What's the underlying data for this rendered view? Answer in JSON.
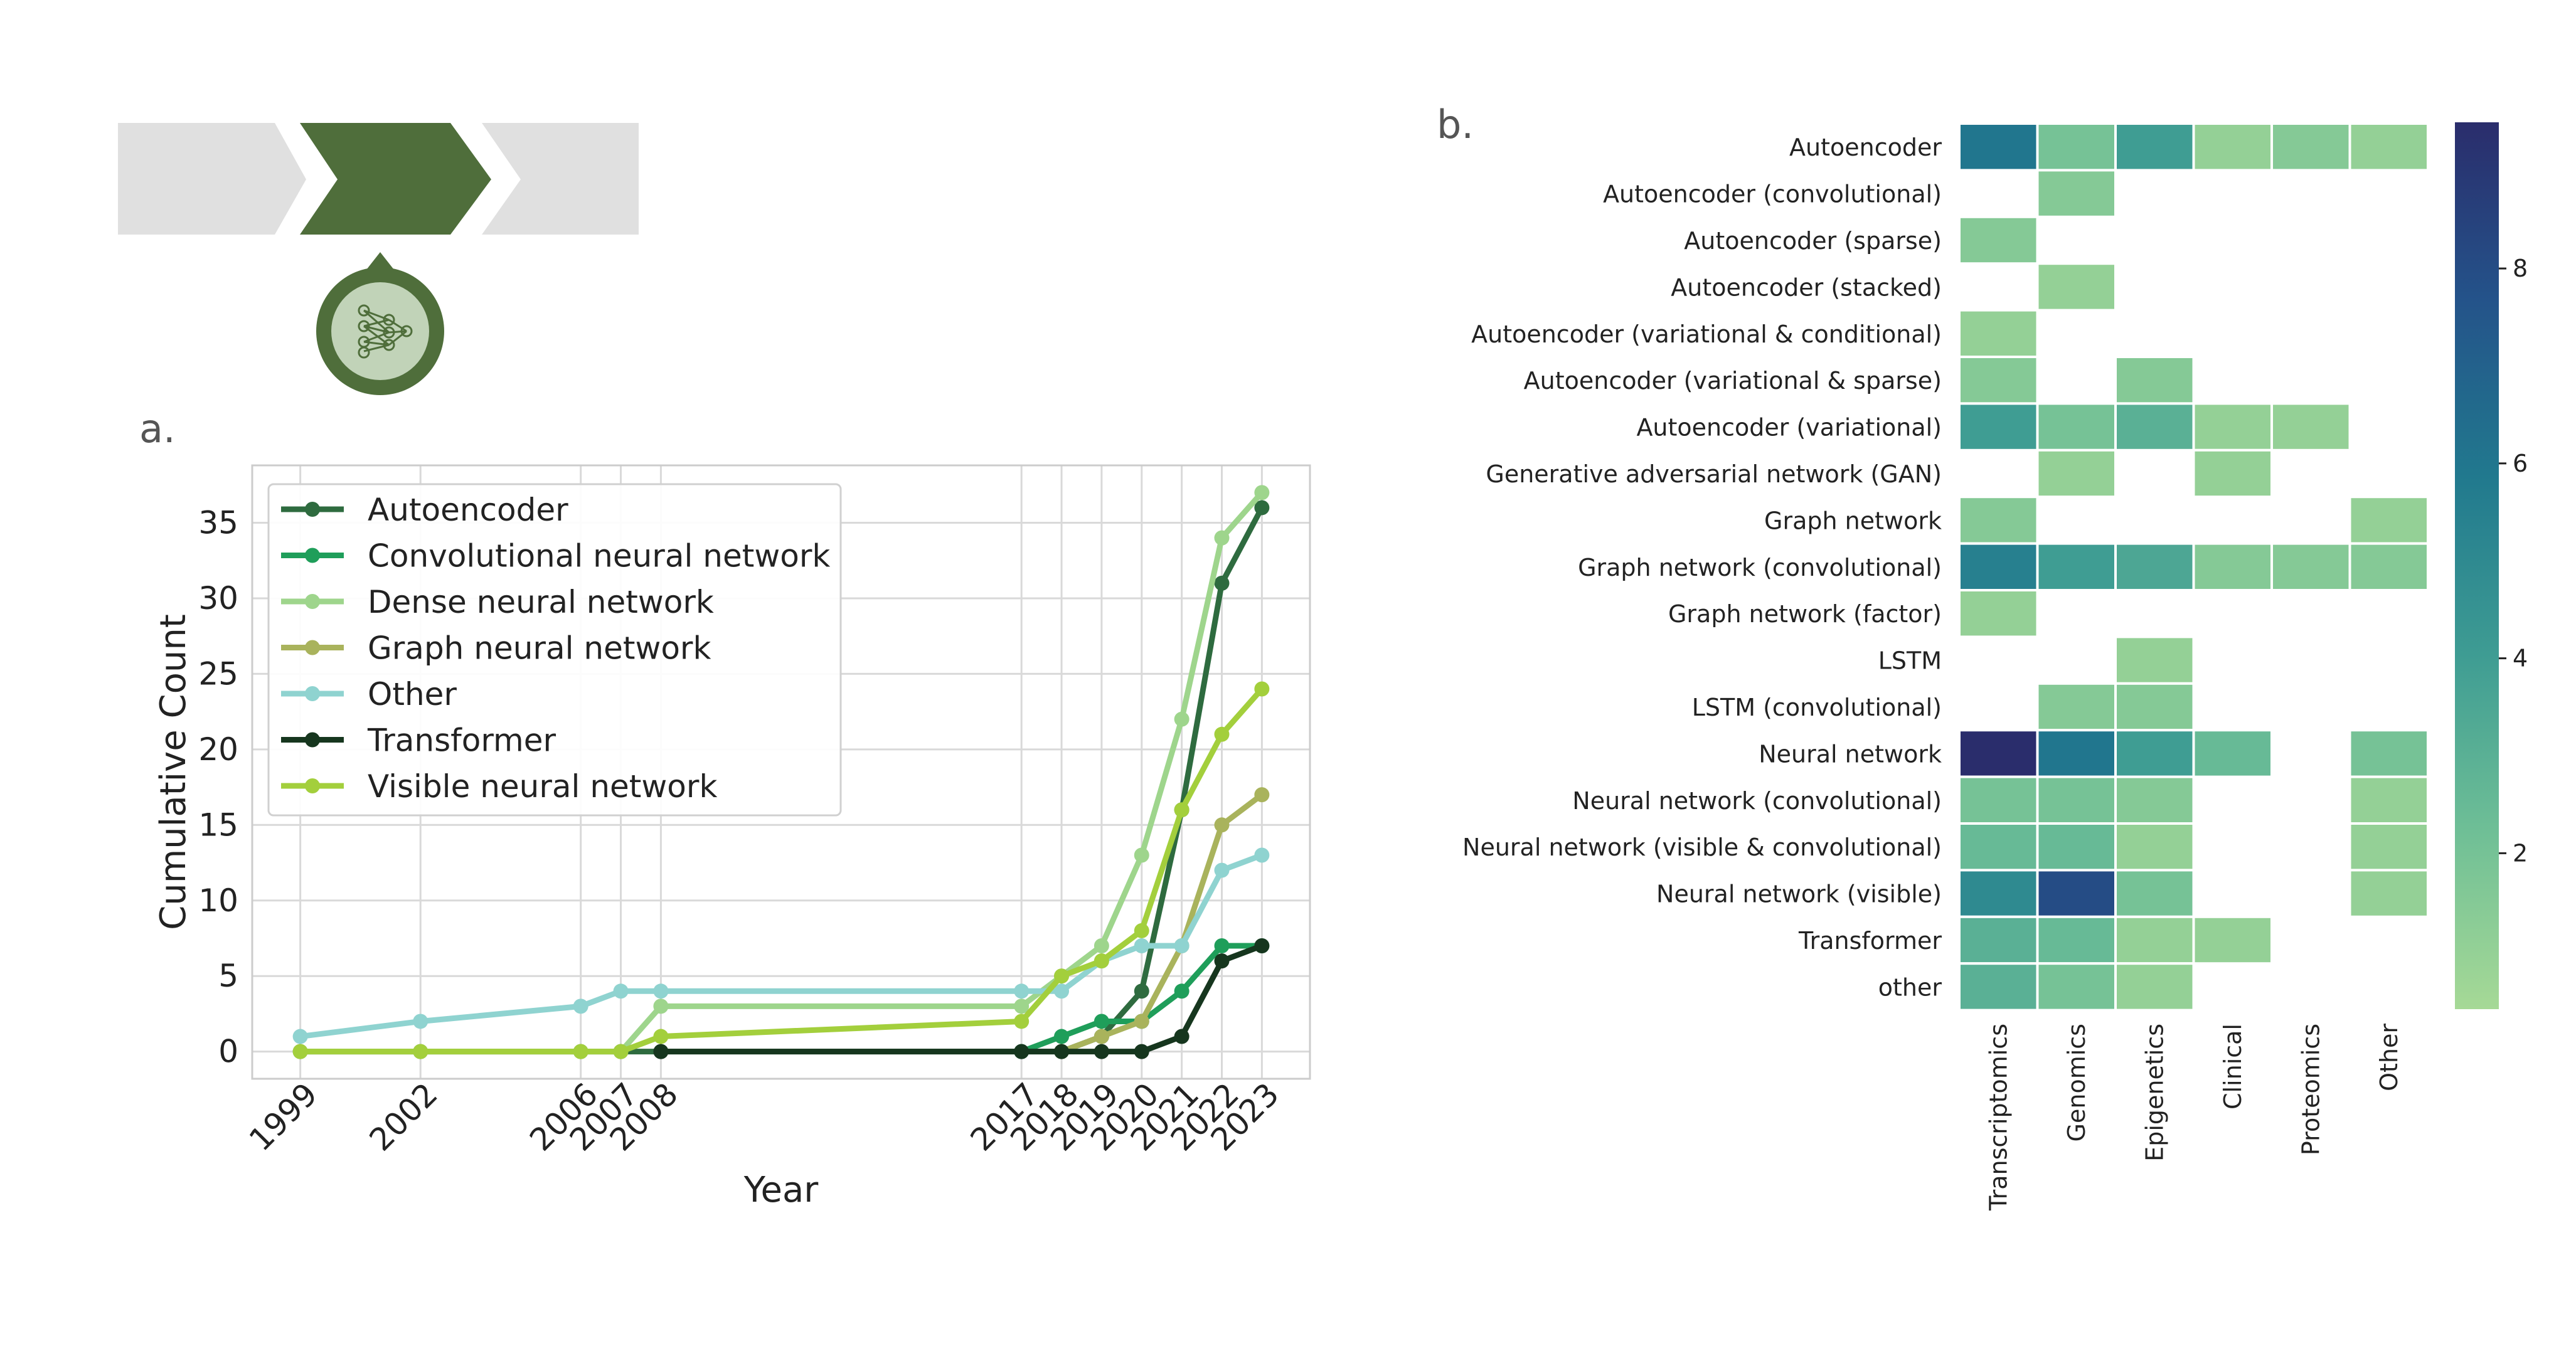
{
  "panels": {
    "a_label": "a.",
    "b_label": "b."
  },
  "icons": {
    "process": "chevron-process-icon",
    "network": "neural-network-icon"
  },
  "chart_data": [
    {
      "type": "line",
      "title": "",
      "xlabel": "Year",
      "ylabel": "Cumulative Count",
      "x": [
        1999,
        2002,
        2006,
        2007,
        2008,
        2017,
        2018,
        2019,
        2020,
        2021,
        2022,
        2023
      ],
      "xlim": [
        1997.8,
        2024.2
      ],
      "ylim": [
        -1.8,
        38.8
      ],
      "yticks": [
        0,
        5,
        10,
        15,
        20,
        25,
        30,
        35
      ],
      "grid": true,
      "legend": "upper-left",
      "series": [
        {
          "name": "Autoencoder",
          "color": "#2e6b3f",
          "x": [
            1999,
            2002,
            2006,
            2007,
            2008,
            2017,
            2018,
            2019,
            2020,
            2021,
            2022,
            2023
          ],
          "values": [
            0,
            0,
            0,
            0,
            0,
            0,
            0,
            1,
            4,
            16,
            31,
            36
          ]
        },
        {
          "name": "Convolutional neural network",
          "color": "#1f9e5a",
          "x": [
            2017,
            2018,
            2019,
            2020,
            2021,
            2022,
            2023
          ],
          "values": [
            0,
            1,
            2,
            2,
            4,
            7,
            7
          ]
        },
        {
          "name": "Dense neural network",
          "color": "#9ed58c",
          "x": [
            1999,
            2002,
            2006,
            2007,
            2008,
            2017,
            2018,
            2019,
            2020,
            2021,
            2022,
            2023
          ],
          "values": [
            0,
            0,
            0,
            0,
            3,
            3,
            5,
            7,
            13,
            22,
            34,
            37
          ]
        },
        {
          "name": "Graph neural network",
          "color": "#a9b35c",
          "x": [
            2018,
            2019,
            2020,
            2021,
            2022,
            2023
          ],
          "values": [
            0,
            1,
            2,
            7,
            15,
            17
          ]
        },
        {
          "name": "Other",
          "color": "#8fd3d0",
          "x": [
            1999,
            2002,
            2006,
            2007,
            2008,
            2017,
            2018,
            2019,
            2020,
            2021,
            2022,
            2023
          ],
          "values": [
            1,
            2,
            3,
            4,
            4,
            4,
            4,
            6,
            7,
            7,
            12,
            13
          ]
        },
        {
          "name": "Transformer",
          "color": "#16361e",
          "x": [
            2008,
            2017,
            2018,
            2019,
            2020,
            2021,
            2022,
            2023
          ],
          "values": [
            0,
            0,
            0,
            0,
            0,
            1,
            6,
            7
          ]
        },
        {
          "name": "Visible neural network",
          "color": "#a3cf3c",
          "x": [
            1999,
            2002,
            2006,
            2007,
            2008,
            2017,
            2018,
            2019,
            2020,
            2021,
            2022,
            2023
          ],
          "values": [
            0,
            0,
            0,
            0,
            1,
            2,
            5,
            6,
            8,
            16,
            21,
            24
          ]
        }
      ]
    },
    {
      "type": "heatmap",
      "title": "",
      "rows": [
        "Autoencoder",
        "Autoencoder (convolutional)",
        "Autoencoder (sparse)",
        "Autoencoder (stacked)",
        "Autoencoder (variational & conditional)",
        "Autoencoder (variational & sparse)",
        "Autoencoder (variational)",
        "Generative adversarial network (GAN)",
        "Graph network",
        "Graph network (convolutional)",
        "Graph network (factor)",
        "LSTM",
        "LSTM (convolutional)",
        "Neural network",
        "Neural network (convolutional)",
        "Neural network (visible & convolutional)",
        "Neural network (visible)",
        "Transformer",
        "other"
      ],
      "columns": [
        "Transcriptomics",
        "Genomics",
        "Epigenetics",
        "Clinical",
        "Proteomics",
        "Other"
      ],
      "values": [
        [
          6,
          2,
          4,
          1,
          1.5,
          1
        ],
        [
          null,
          1.5,
          null,
          null,
          null,
          null
        ],
        [
          1.5,
          null,
          null,
          null,
          null,
          null
        ],
        [
          null,
          1,
          null,
          null,
          null,
          null
        ],
        [
          1,
          null,
          null,
          null,
          null,
          null
        ],
        [
          1.5,
          null,
          1.5,
          null,
          null,
          null
        ],
        [
          4,
          2,
          3,
          1,
          1,
          null
        ],
        [
          null,
          1,
          null,
          1,
          null,
          null
        ],
        [
          1.5,
          null,
          null,
          null,
          null,
          1
        ],
        [
          5.5,
          4,
          3.5,
          1.5,
          1.5,
          1.5
        ],
        [
          1,
          null,
          null,
          null,
          null,
          null
        ],
        [
          null,
          null,
          1,
          null,
          null,
          null
        ],
        [
          null,
          1.5,
          1.5,
          null,
          null,
          null
        ],
        [
          9.5,
          6,
          4,
          2.5,
          null,
          2
        ],
        [
          2,
          2,
          1.5,
          null,
          null,
          1
        ],
        [
          2.5,
          2.5,
          1,
          null,
          null,
          1
        ],
        [
          5,
          8,
          2,
          null,
          null,
          1
        ],
        [
          3,
          2.5,
          1,
          1,
          null,
          null
        ],
        [
          3,
          2,
          1,
          null,
          null,
          null
        ]
      ],
      "colorbar": {
        "range": [
          0.4,
          9.5
        ],
        "ticks": [
          2,
          4,
          6,
          8
        ],
        "colormap": [
          "#a6d996",
          "#6fbf96",
          "#3e9c93",
          "#21798e",
          "#24538a",
          "#2a2d6c"
        ]
      }
    }
  ]
}
